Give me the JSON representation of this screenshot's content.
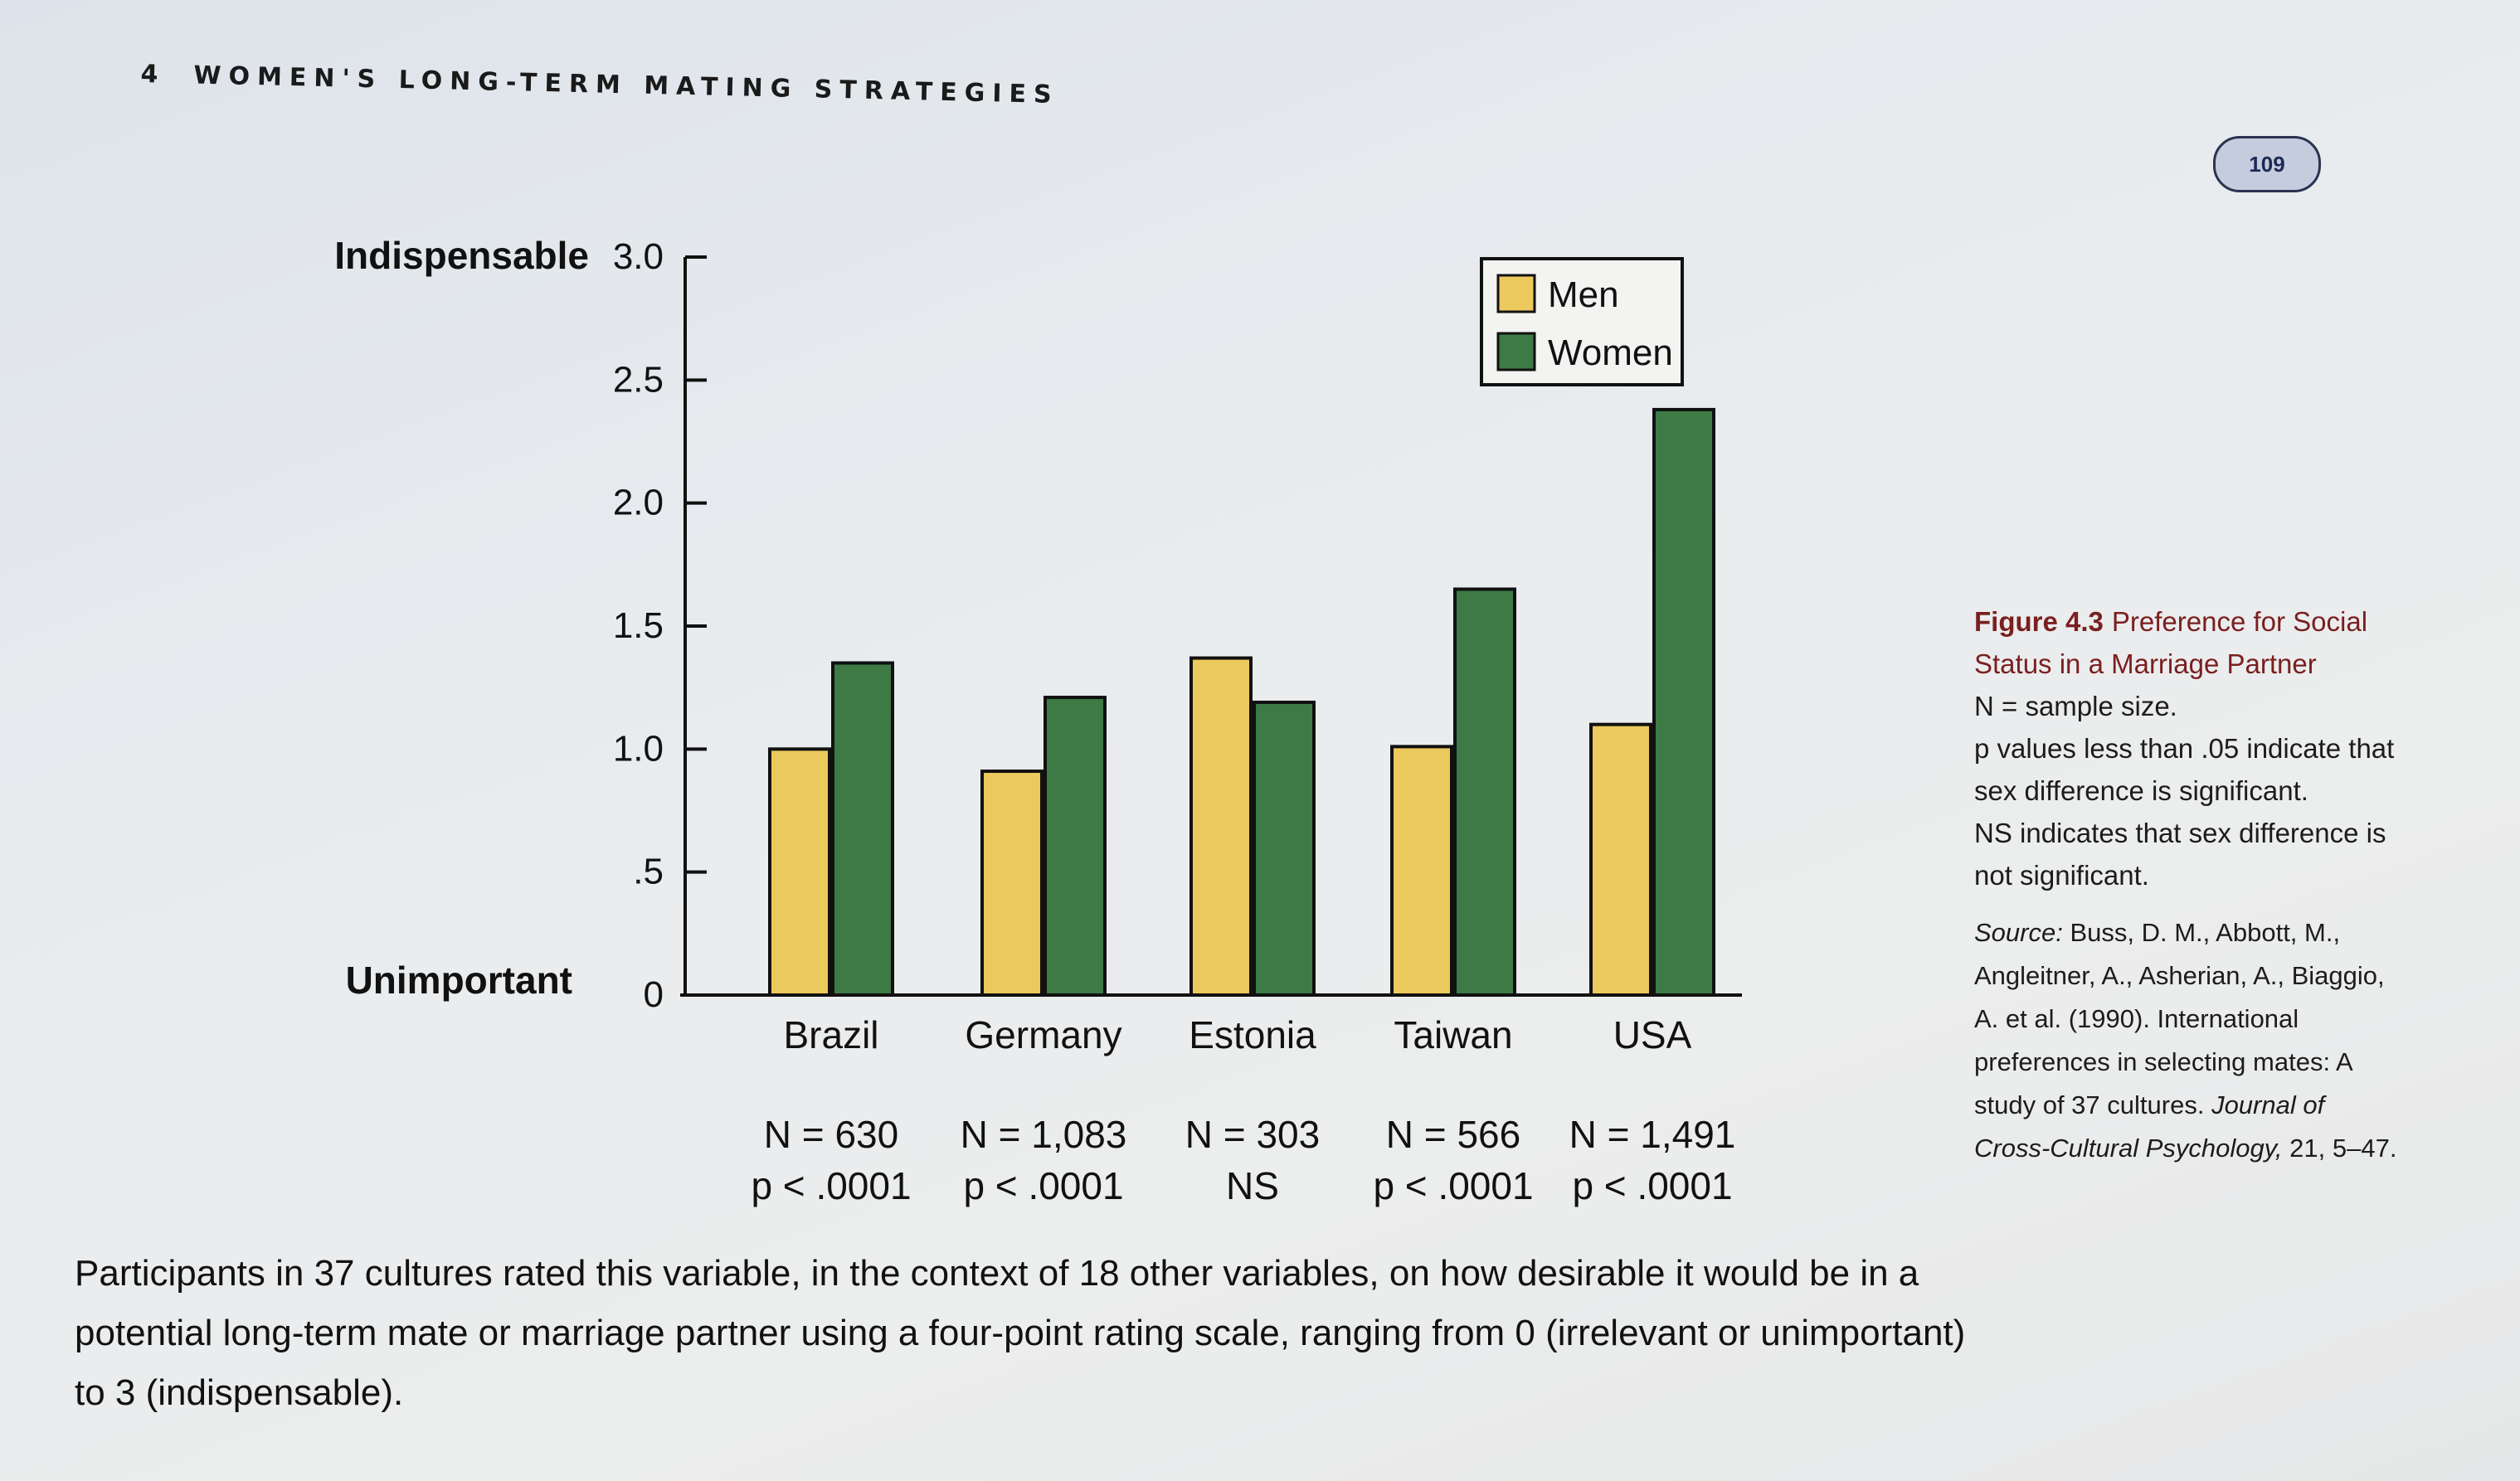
{
  "header": {
    "page_number": "4",
    "title": "WOMEN'S LONG-TERM MATING STRATEGIES"
  },
  "badge": {
    "text": "109"
  },
  "chart_data": {
    "type": "bar",
    "categories": [
      "Brazil",
      "Germany",
      "Estonia",
      "Taiwan",
      "USA"
    ],
    "series": [
      {
        "name": "Men",
        "values": [
          1.0,
          0.91,
          1.37,
          1.01,
          1.1
        ],
        "color": "#ecc95c"
      },
      {
        "name": "Women",
        "values": [
          1.35,
          1.21,
          1.19,
          1.65,
          2.38
        ],
        "color": "#3d7a45"
      }
    ],
    "ylim": [
      0,
      3.0
    ],
    "yticks": [
      {
        "value": 0,
        "label": "0"
      },
      {
        "value": 0.5,
        "label": ".5"
      },
      {
        "value": 1.0,
        "label": "1.0"
      },
      {
        "value": 1.5,
        "label": "1.5"
      },
      {
        "value": 2.0,
        "label": "2.0"
      },
      {
        "value": 2.5,
        "label": "2.5"
      },
      {
        "value": 3.0,
        "label": "3.0"
      }
    ],
    "y_top_label": "Indispensable",
    "y_bottom_label": "Unimportant",
    "sample_sizes": [
      "N = 630",
      "N = 1,083",
      "N = 303",
      "N = 566",
      "N = 1,491"
    ],
    "p_values": [
      "p < .0001",
      "p < .0001",
      "NS",
      "p < .0001",
      "p < .0001"
    ],
    "legend_position": "top-right"
  },
  "caption": {
    "figure_label": "Figure 4.3",
    "figure_title": "Preference for Social Status in a Marriage Partner",
    "lines": [
      "N = sample size.",
      "p values less than .05 indicate that sex difference is significant.",
      "NS indicates that sex difference is not significant."
    ],
    "source_label": "Source:",
    "source_text": "Buss, D. M., Abbott, M., Angleitner, A., Asherian, A., Biaggio, A. et al. (1990). International preferences in selecting mates: A study of 37 cultures.",
    "journal": "Journal of Cross-Cultural Psychology,",
    "citation_end": "21, 5–47."
  },
  "bottom_caption": "Participants in 37 cultures rated this variable, in the context of 18 other variables, on how desirable it would be in a potential long-term mate or marriage partner using a four-point rating scale, ranging from 0 (irrelevant or unimportant) to 3 (indispensable)."
}
